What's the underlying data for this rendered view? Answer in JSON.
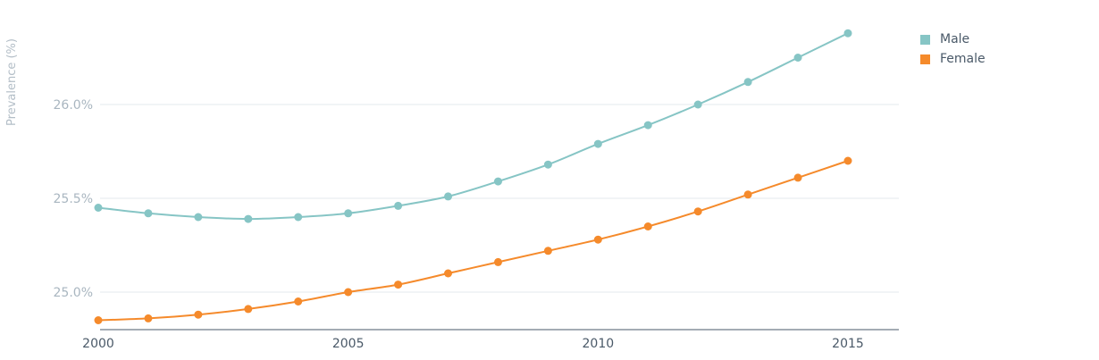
{
  "chart_data": {
    "type": "line",
    "ylabel": "Prevalence (%)",
    "xlabel": "",
    "x": [
      2000,
      2001,
      2002,
      2003,
      2004,
      2005,
      2006,
      2007,
      2008,
      2009,
      2010,
      2011,
      2012,
      2013,
      2014,
      2015
    ],
    "xticks": [
      2000,
      2005,
      2010,
      2015
    ],
    "xtick_labels": [
      "2000",
      "2005",
      "2010",
      "2015"
    ],
    "xlim": [
      2000,
      2016
    ],
    "ylim": [
      24.8,
      26.45
    ],
    "yticks": [
      25.0,
      25.5,
      26.0
    ],
    "ytick_labels": [
      "25.0%",
      "25.5%",
      "26.0%"
    ],
    "grid": true,
    "legend_position": "top-right",
    "series": [
      {
        "name": "Male",
        "color": "#86c5c5",
        "values": [
          25.45,
          25.42,
          25.4,
          25.39,
          25.4,
          25.42,
          25.46,
          25.51,
          25.59,
          25.68,
          25.79,
          25.89,
          26.0,
          26.12,
          26.25,
          26.38
        ]
      },
      {
        "name": "Female",
        "color": "#f58a2b",
        "values": [
          24.85,
          24.86,
          24.88,
          24.91,
          24.95,
          25.0,
          25.04,
          25.1,
          25.16,
          25.22,
          25.28,
          25.35,
          25.43,
          25.52,
          25.61,
          25.7
        ]
      }
    ]
  }
}
